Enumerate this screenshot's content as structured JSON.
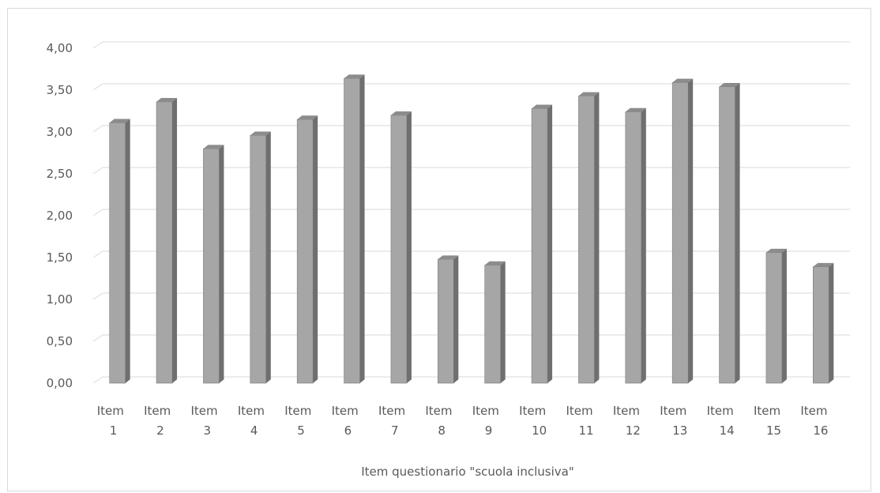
{
  "chart_data": {
    "type": "bar",
    "style": "3d-column",
    "categories": [
      [
        "Item",
        "1"
      ],
      [
        "Item",
        "2"
      ],
      [
        "Item",
        "3"
      ],
      [
        "Item",
        "4"
      ],
      [
        "Item",
        "5"
      ],
      [
        "Item",
        "6"
      ],
      [
        "Item",
        "7"
      ],
      [
        "Item",
        "8"
      ],
      [
        "Item",
        "9"
      ],
      [
        "Item",
        "10"
      ],
      [
        "Item",
        "11"
      ],
      [
        "Item",
        "12"
      ],
      [
        "Item",
        "13"
      ],
      [
        "Item",
        "14"
      ],
      [
        "Item",
        "15"
      ],
      [
        "Item",
        "16"
      ]
    ],
    "values": [
      3.11,
      3.36,
      2.8,
      2.96,
      3.15,
      3.64,
      3.2,
      1.48,
      1.41,
      3.28,
      3.43,
      3.24,
      3.59,
      3.54,
      1.56,
      1.39
    ],
    "ylim": [
      0,
      4
    ],
    "yticks": [
      "0,00",
      "0,50",
      "1,00",
      "1,50",
      "2,00",
      "2,50",
      "3,00",
      "3,50",
      "4,00"
    ],
    "xlabel": "Item questionario \"scuola inclusiva\"",
    "title": "",
    "ylabel": "",
    "grid": true,
    "colors": {
      "bar_front": "#a6a6a6",
      "bar_side": "#6f6f6f",
      "bar_top": "#8c8c8c",
      "grid": "#d9d9d9",
      "text": "#595959"
    }
  }
}
